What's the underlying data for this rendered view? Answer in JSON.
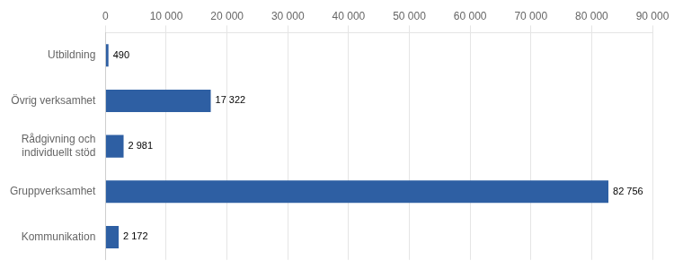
{
  "chart_data": {
    "type": "bar",
    "orientation": "horizontal",
    "categories": [
      "Utbildning",
      "Övrig verksamhet",
      "Rådgivning och\nindividuellt stöd",
      "Gruppverksamhet",
      "Kommunikation"
    ],
    "values": [
      490,
      17322,
      2981,
      82756,
      2172
    ],
    "value_labels": [
      "490",
      "17 322",
      "2 981",
      "82 756",
      "2 172"
    ],
    "data_labels": true,
    "color": "#2E5FA3",
    "xlim": [
      0,
      90000
    ],
    "xticks": [
      0,
      {
        "value": 10000,
        "label": "10 000"
      },
      {
        "value": 20000,
        "label": "20 000"
      },
      {
        "value": 30000,
        "label": "30 000"
      },
      {
        "value": 40000,
        "label": "40 000"
      },
      {
        "value": 50000,
        "label": "50 000"
      },
      {
        "value": 60000,
        "label": "60 000"
      },
      {
        "value": 70000,
        "label": "70 000"
      },
      {
        "value": 80000,
        "label": "80 000"
      },
      {
        "value": 90000,
        "label": "90 000"
      }
    ],
    "grid": true
  }
}
